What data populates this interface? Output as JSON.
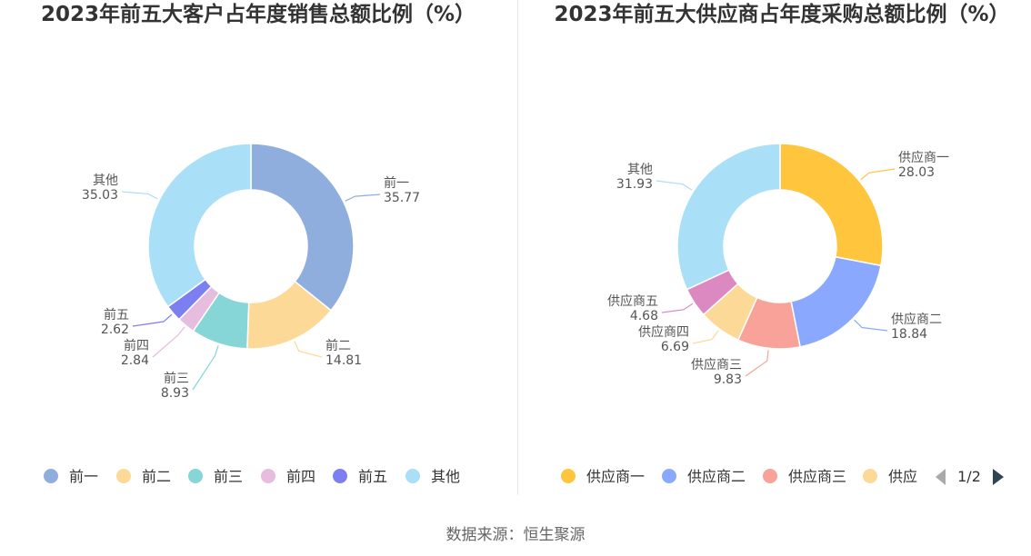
{
  "source_text": "数据来源：恒生聚源",
  "pager": {
    "text": "1/2",
    "prev_icon": "triangle-left-icon",
    "next_icon": "triangle-right-icon"
  },
  "chart_data": [
    {
      "type": "pie",
      "title": "2023年前五大客户占年度销售总额比例（%）",
      "categories": [
        "前一",
        "前二",
        "前三",
        "前四",
        "前五",
        "其他"
      ],
      "values": [
        35.77,
        14.81,
        8.93,
        2.84,
        2.62,
        35.03
      ],
      "colors": [
        "#8faedd",
        "#fdd998",
        "#86d6d8",
        "#e6bcdf",
        "#7b7ff0",
        "#aadff8"
      ],
      "legend": "bottom",
      "legend_items": [
        "前一",
        "前二",
        "前三",
        "前四",
        "前五",
        "其他"
      ]
    },
    {
      "type": "pie",
      "title": "2023年前五大供应商占年度采购总额比例（%）",
      "categories": [
        "供应商一",
        "供应商二",
        "供应商三",
        "供应商四",
        "供应商五",
        "其他"
      ],
      "values": [
        28.03,
        18.84,
        9.83,
        6.69,
        4.68,
        31.93
      ],
      "colors": [
        "#ffc53d",
        "#8aa8fd",
        "#f8a29a",
        "#fdd998",
        "#dc89c2",
        "#aadff8"
      ],
      "legend": "bottom",
      "legend_items": [
        "供应商一",
        "供应商二",
        "供应商三",
        "供应"
      ]
    }
  ]
}
